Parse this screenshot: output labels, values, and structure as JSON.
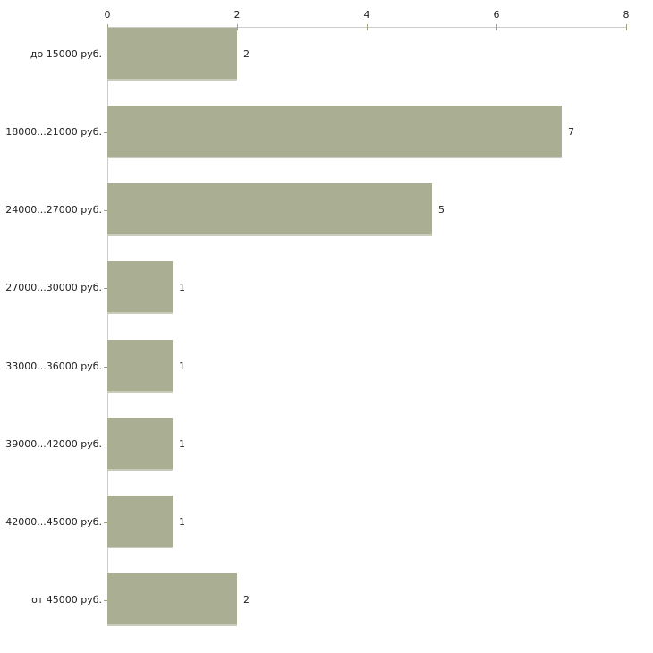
{
  "chart_data": {
    "type": "bar",
    "orientation": "horizontal",
    "title": "",
    "xlabel": "",
    "ylabel": "",
    "categories": [
      "до 15000 руб.",
      "18000...21000 руб.",
      "24000...27000 руб.",
      "27000...30000 руб.",
      "33000...36000 руб.",
      "39000...42000 руб.",
      "42000...45000 руб.",
      "от 45000 руб."
    ],
    "values": [
      2,
      7,
      5,
      1,
      1,
      1,
      1,
      2
    ],
    "value_labels": [
      "2",
      "7",
      "5",
      "1",
      "1",
      "1",
      "1",
      "2"
    ],
    "xlim": [
      0,
      8
    ],
    "x_ticks": [
      "0",
      "2",
      "4",
      "6",
      "8"
    ],
    "x_tick_values": [
      0,
      2,
      4,
      6,
      8
    ],
    "axis_position": "top",
    "grid": false,
    "legend": null,
    "colors": {
      "bar_fill": "#aaae93",
      "bar_bottom_edge": "#c9ccba",
      "axis_line": "#cccccc",
      "tick_mark": "#a2a381",
      "text": "#222222",
      "background": "#ffffff"
    }
  }
}
